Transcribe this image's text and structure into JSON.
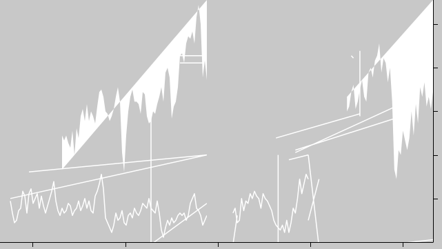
{
  "chart_data": [
    {
      "type": "area",
      "panel": "left",
      "title": "",
      "xlabel": "",
      "ylabel": "",
      "grid": false,
      "legend": "none",
      "xlim": [
        0,
        100
      ],
      "ylim": [
        0,
        100
      ],
      "series": [
        {
          "kind": "area",
          "x": [
            30,
            31,
            32,
            33,
            34,
            35,
            36,
            37,
            38,
            39,
            40,
            41,
            42,
            43,
            44,
            45,
            46,
            47,
            48,
            49,
            50,
            51,
            52,
            53,
            54,
            55,
            56,
            57,
            58,
            59,
            60,
            61,
            62,
            63,
            64,
            65,
            66,
            67,
            68,
            69,
            70,
            71,
            72,
            73,
            74,
            75,
            76,
            77,
            78,
            79,
            80,
            81,
            82,
            83,
            84,
            85,
            86,
            87,
            88,
            89,
            90,
            91,
            92,
            93,
            94,
            95,
            96,
            97,
            98,
            99,
            100
          ],
          "y": [
            44,
            42,
            44,
            41,
            39,
            46,
            36,
            47,
            43,
            52,
            55,
            50,
            57,
            50,
            54,
            52,
            49,
            56,
            62,
            63,
            60,
            54,
            53,
            50,
            52,
            55,
            60,
            64,
            58,
            37,
            29,
            44,
            54,
            60,
            63,
            58,
            58,
            57,
            53,
            62,
            61,
            52,
            49,
            50,
            54,
            53,
            57,
            60,
            64,
            58,
            70,
            72,
            68,
            51,
            56,
            58,
            64,
            77,
            78,
            74,
            82,
            85,
            84,
            87,
            82,
            93,
            98,
            90,
            68,
            75,
            67
          ]
        },
        {
          "kind": "line",
          "x": [
            5,
            6,
            7,
            8,
            9,
            10,
            11,
            12,
            13,
            14,
            15,
            16,
            17,
            18,
            19,
            20,
            21,
            22,
            23,
            24,
            25,
            26,
            27,
            28,
            29,
            30,
            31,
            32,
            33,
            34,
            35,
            36,
            37,
            38,
            39,
            40,
            41,
            42,
            43,
            44,
            45,
            46,
            47,
            48,
            49,
            50,
            51,
            52,
            53,
            54,
            55,
            56,
            57,
            58,
            59,
            60,
            61,
            62,
            63,
            64,
            65,
            66,
            67,
            68,
            69,
            70,
            71,
            72,
            73,
            74,
            75,
            76,
            77,
            78,
            79,
            80,
            81,
            82,
            83,
            84,
            85,
            86,
            87,
            88,
            89,
            90,
            91,
            92,
            93,
            94,
            95,
            96,
            97,
            98,
            99,
            100
          ],
          "y": [
            17,
            12,
            8,
            9,
            13,
            14,
            21,
            19,
            12,
            20,
            22,
            16,
            18,
            20,
            14,
            19,
            15,
            12,
            15,
            18,
            21,
            25,
            17,
            13,
            11,
            14,
            12,
            13,
            16,
            15,
            11,
            13,
            14,
            17,
            13,
            15,
            18,
            14,
            17,
            13,
            12,
            19,
            21,
            24,
            28,
            22,
            10,
            8,
            6,
            4,
            7,
            12,
            9,
            10,
            13,
            8,
            7,
            11,
            12,
            10,
            14,
            12,
            11,
            13,
            16,
            15,
            14,
            18,
            14,
            13,
            12,
            17,
            12,
            5,
            2,
            6,
            9,
            7,
            10,
            8,
            9,
            11,
            12,
            11,
            12,
            9,
            11,
            16,
            18,
            20,
            14,
            13,
            11,
            7,
            9,
            11
          ]
        },
        {
          "kind": "line",
          "x": [
            14,
            100
          ],
          "y": [
            29,
            36
          ]
        },
        {
          "kind": "line",
          "x": [
            5,
            100
          ],
          "y": [
            18,
            36
          ]
        },
        {
          "kind": "line",
          "x": [
            73,
            100
          ],
          "y": [
            -1,
            16
          ]
        },
        {
          "kind": "line",
          "x": [
            73,
            73
          ],
          "y": [
            -1,
            66
          ]
        },
        {
          "kind": "line",
          "x": [
            87,
            98
          ],
          "y": [
            77,
            77
          ]
        },
        {
          "kind": "line",
          "x": [
            87,
            98
          ],
          "y": [
            74,
            74
          ]
        },
        {
          "kind": "line",
          "x": [
            98,
            100
          ],
          "y": [
            -2,
            0
          ]
        }
      ]
    },
    {
      "type": "area",
      "panel": "right",
      "title": "",
      "xlabel": "",
      "ylabel": "",
      "grid": false,
      "legend": "none",
      "xlim": [
        0,
        100
      ],
      "ylim": [
        0,
        100
      ],
      "series": [
        {
          "kind": "area",
          "x": [
            60,
            61,
            62,
            63,
            64,
            65,
            66,
            67,
            68,
            69,
            70,
            71,
            72,
            73,
            74,
            75,
            76,
            77,
            78,
            79,
            80,
            81,
            82,
            83,
            84,
            85,
            86,
            87,
            88,
            89,
            90,
            91,
            92,
            93,
            94,
            95,
            96,
            97,
            98,
            99,
            100
          ],
          "y": [
            54,
            56,
            62,
            65,
            55,
            58,
            63,
            67,
            60,
            58,
            70,
            72,
            68,
            75,
            77,
            82,
            70,
            76,
            74,
            66,
            72,
            58,
            30,
            26,
            38,
            36,
            46,
            42,
            38,
            43,
            54,
            44,
            57,
            49,
            64,
            60,
            66,
            56,
            60,
            55,
            62
          ]
        },
        {
          "kind": "line",
          "x": [
            7,
            8,
            9,
            10,
            11,
            12,
            13,
            14,
            15,
            16,
            17,
            18,
            19,
            20,
            21,
            22,
            23,
            24,
            25,
            26,
            27,
            28,
            29,
            30,
            31,
            32,
            33,
            34,
            35,
            36,
            37,
            38,
            39,
            40,
            41,
            42
          ],
          "y": [
            12,
            14,
            8,
            9,
            18,
            13,
            17,
            16,
            20,
            18,
            21,
            19,
            18,
            14,
            20,
            18,
            17,
            15,
            13,
            9,
            7,
            6,
            5,
            7,
            4,
            9,
            4,
            8,
            14,
            12,
            18,
            26,
            20,
            24,
            28,
            26
          ]
        },
        {
          "kind": "line",
          "x": [
            80,
            100
          ],
          "y": [
            -1,
            1
          ]
        },
        {
          "kind": "line",
          "x": [
            33,
            42
          ],
          "y": [
            34,
            36
          ]
        },
        {
          "kind": "line",
          "x": [
            27,
            66
          ],
          "y": [
            43,
            53
          ]
        },
        {
          "kind": "line",
          "x": [
            36,
            82
          ],
          "y": [
            38,
            51
          ]
        },
        {
          "kind": "line",
          "x": [
            36,
            85
          ],
          "y": [
            37,
            57
          ]
        },
        {
          "kind": "line",
          "x": [
            62,
            63
          ],
          "y": [
            77,
            76
          ]
        },
        {
          "kind": "line",
          "x": [
            28,
            28
          ],
          "y": [
            -2,
            36
          ]
        },
        {
          "kind": "line",
          "x": [
            42,
            47
          ],
          "y": [
            36,
            -2
          ]
        },
        {
          "kind": "line",
          "x": [
            7,
            9
          ],
          "y": [
            -1,
            11
          ]
        },
        {
          "kind": "line",
          "x": [
            66,
            66
          ],
          "y": [
            79,
            52
          ]
        },
        {
          "kind": "line",
          "x": [
            42,
            47
          ],
          "y": [
            9,
            26
          ]
        }
      ]
    }
  ],
  "colors": {
    "background": "#c8c8c8",
    "marks": "#ffffff",
    "axis": "#000000"
  }
}
